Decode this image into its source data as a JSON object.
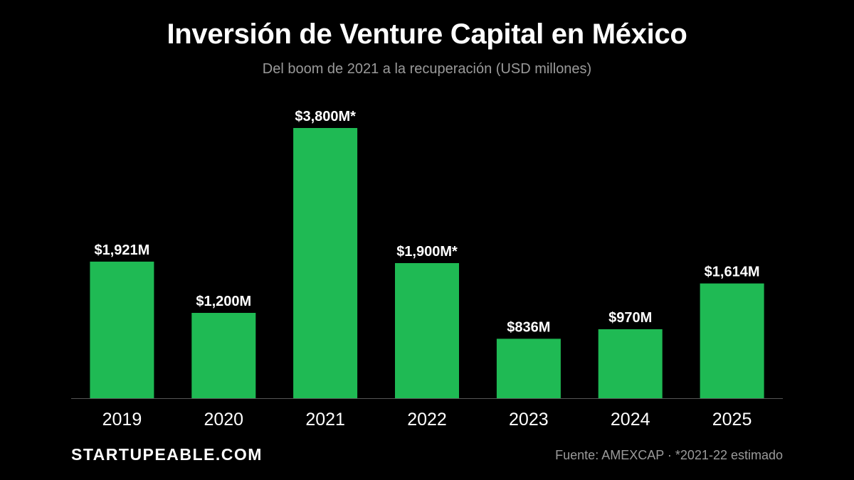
{
  "title": "Inversión de Venture Capital en México",
  "subtitle": "Del boom de 2021 a la recuperación (USD millones)",
  "brand": "STARTUPEABLE.COM",
  "source": "Fuente: AMEXCAP · *2021-22 estimado",
  "colors": {
    "background": "#000000",
    "bar": "#1fba54",
    "axis": "#555555",
    "text": "#ffffff",
    "muted": "#9a9a9a"
  },
  "chart_data": {
    "type": "bar",
    "title": "Inversión de Venture Capital en México",
    "subtitle": "Del boom de 2021 a la recuperación (USD millones)",
    "xlabel": "",
    "ylabel": "",
    "categories": [
      "2019",
      "2020",
      "2021",
      "2022",
      "2023",
      "2024",
      "2025"
    ],
    "values": [
      1921,
      1200,
      3800,
      1900,
      836,
      970,
      1614
    ],
    "data_labels": [
      "$1,921M",
      "$1,200M",
      "$3,800M*",
      "$1,900M*",
      "$836M",
      "$970M",
      "$1,614M"
    ],
    "ylim": [
      0,
      3800
    ],
    "grid": false,
    "legend": "none"
  }
}
